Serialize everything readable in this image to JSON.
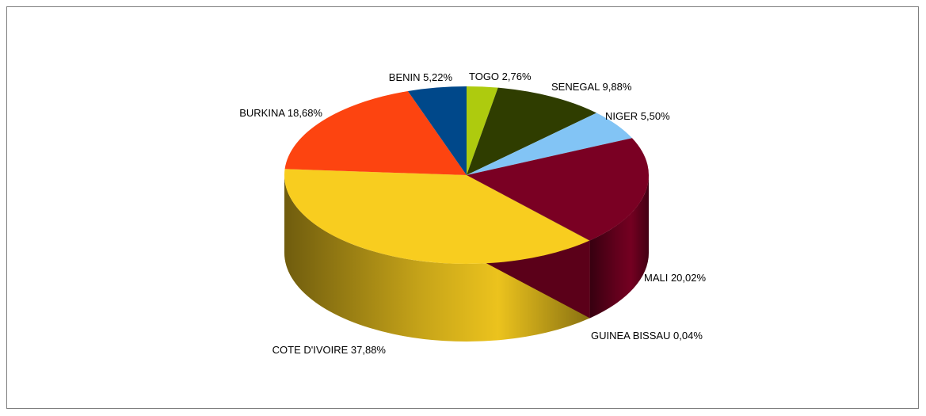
{
  "chart_data": {
    "type": "pie",
    "style": "3d-exploded-none",
    "slices": [
      {
        "label": "TOGO 2,76%",
        "name": "TOGO",
        "value": 2.76,
        "color": "#aecb0e"
      },
      {
        "label": "SENEGAL 9,88%",
        "name": "SENEGAL",
        "value": 9.88,
        "color": "#2f3d00"
      },
      {
        "label": "NIGER 5,50%",
        "name": "NIGER",
        "value": 5.5,
        "color": "#82c4f5"
      },
      {
        "label": "MALI 20,02%",
        "name": "MALI",
        "value": 20.02,
        "color": "#7a0023"
      },
      {
        "label": "GUINEA BISSAU 0,04%",
        "name": "GUINEA BISSAU",
        "value": 0.04,
        "color": "#6a1b2b"
      },
      {
        "label": "COTE D'IVOIRE 37,88%",
        "name": "COTE D'IVOIRE",
        "value": 37.88,
        "color": "#f8cd1f"
      },
      {
        "label": "BURKINA 18,68%",
        "name": "BURKINA",
        "value": 18.68,
        "color": "#fd4410"
      },
      {
        "label": "BENIN 5,22%",
        "name": "BENIN",
        "value": 5.22,
        "color": "#00488a"
      }
    ]
  }
}
